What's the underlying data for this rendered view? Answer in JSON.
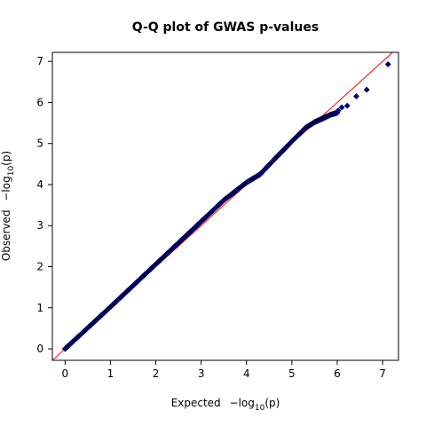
{
  "chart_data": {
    "type": "scatter",
    "title": "Q-Q plot of GWAS p-values",
    "xlabel": {
      "prefix": "Expected",
      "math": "−log",
      "sub": "10",
      "arg": "(p)"
    },
    "ylabel": {
      "prefix": "Observed",
      "math": "−log",
      "sub": "10",
      "arg": "(p)"
    },
    "xlim": [
      -0.28,
      7.35
    ],
    "ylim": [
      -0.28,
      7.22
    ],
    "xticks": [
      0,
      1,
      2,
      3,
      4,
      5,
      6,
      7
    ],
    "yticks": [
      0,
      1,
      2,
      3,
      4,
      5,
      6,
      7
    ],
    "grid": false,
    "colors": {
      "points": "#000080",
      "reference_line": "#ff0000",
      "axes": "#000000"
    },
    "reference_line": {
      "type": "identity",
      "slope": 1,
      "intercept": 0
    },
    "series": [
      {
        "marker": "diamond",
        "curve_anchors": [
          [
            0.0,
            0.0
          ],
          [
            1.0,
            1.02
          ],
          [
            2.0,
            2.06
          ],
          [
            3.0,
            3.1
          ],
          [
            3.5,
            3.62
          ],
          [
            4.0,
            4.05
          ],
          [
            4.3,
            4.25
          ],
          [
            4.6,
            4.6
          ],
          [
            5.0,
            5.05
          ],
          [
            5.3,
            5.38
          ],
          [
            5.5,
            5.52
          ],
          [
            5.7,
            5.62
          ],
          [
            5.85,
            5.7
          ],
          [
            6.0,
            5.75
          ]
        ],
        "tail_points": [
          [
            5.92,
            5.72
          ],
          [
            6.02,
            5.8
          ],
          [
            6.1,
            5.88
          ],
          [
            6.22,
            5.92
          ],
          [
            6.42,
            6.15
          ],
          [
            6.65,
            6.31
          ],
          [
            7.12,
            6.93
          ]
        ]
      }
    ]
  }
}
